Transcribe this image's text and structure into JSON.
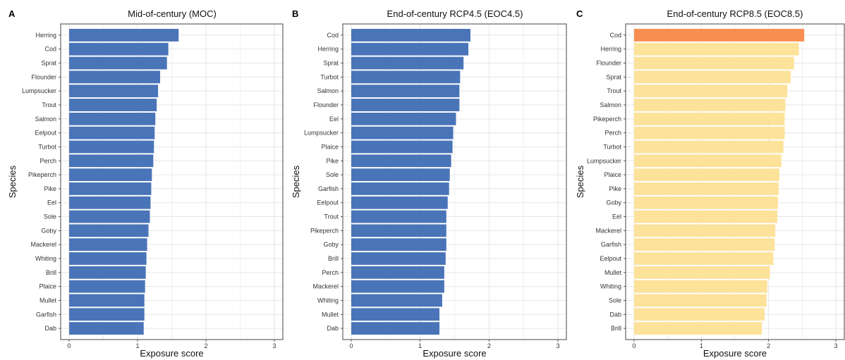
{
  "colors": {
    "blue": "#4a74b8",
    "yellow": "#fde29a",
    "orange": "#f98e52",
    "grid": "#e6e6e6",
    "frame": "#444444"
  },
  "chart_data": [
    {
      "type": "bar",
      "orientation": "horizontal",
      "letter": "A",
      "title": "Mid-of-century (MOC)",
      "xlabel": "Exposure score",
      "ylabel": "Species",
      "xlim": [
        0,
        3
      ],
      "xticks": [
        "0",
        "1",
        "2",
        "3"
      ],
      "categories": [
        "Herring",
        "Cod",
        "Sprat",
        "Flounder",
        "Lumpsucker",
        "Trout",
        "Salmon",
        "Eelpout",
        "Turbot",
        "Perch",
        "Pikeperch",
        "Pike",
        "Eel",
        "Sole",
        "Goby",
        "Mackerel",
        "Whiting",
        "Brill",
        "Plaice",
        "Mullet",
        "Garfish",
        "Dab"
      ],
      "values": [
        1.6,
        1.45,
        1.43,
        1.33,
        1.3,
        1.28,
        1.26,
        1.25,
        1.24,
        1.23,
        1.21,
        1.2,
        1.19,
        1.18,
        1.16,
        1.14,
        1.13,
        1.12,
        1.11,
        1.1,
        1.1,
        1.09
      ],
      "bar_colors": [
        "#4a74b8"
      ]
    },
    {
      "type": "bar",
      "orientation": "horizontal",
      "letter": "B",
      "title": "End-of-century RCP4.5 (EOC4.5)",
      "xlabel": "Exposure score",
      "ylabel": "Species",
      "xlim": [
        0,
        3
      ],
      "xticks": [
        "0",
        "1",
        "2",
        "3"
      ],
      "categories": [
        "Cod",
        "Herring",
        "Sprat",
        "Turbot",
        "Salmon",
        "Flounder",
        "Eel",
        "Lumpsucker",
        "Plaice",
        "Pike",
        "Sole",
        "Garfish",
        "Eelpout",
        "Trout",
        "Pikeperch",
        "Goby",
        "Brill",
        "Perch",
        "Mackerel",
        "Whiting",
        "Mullet",
        "Dab"
      ],
      "values": [
        1.73,
        1.7,
        1.63,
        1.58,
        1.57,
        1.57,
        1.52,
        1.48,
        1.47,
        1.45,
        1.43,
        1.42,
        1.4,
        1.38,
        1.38,
        1.38,
        1.37,
        1.35,
        1.35,
        1.32,
        1.28,
        1.28
      ],
      "bar_colors": [
        "#4a74b8"
      ]
    },
    {
      "type": "bar",
      "orientation": "horizontal",
      "letter": "C",
      "title": "End-of-century RCP8.5 (EOC8.5)",
      "xlabel": "Exposure score",
      "ylabel": "Species",
      "xlim": [
        0,
        3
      ],
      "xticks": [
        "0",
        "1",
        "2",
        "3"
      ],
      "categories": [
        "Cod",
        "Herring",
        "Flounder",
        "Sprat",
        "Trout",
        "Salmon",
        "Pikeperch",
        "Perch",
        "Turbot",
        "Lumpsucker",
        "Plaice",
        "Pike",
        "Goby",
        "Eel",
        "Mackerel",
        "Garfish",
        "Eelpout",
        "Mullet",
        "Whiting",
        "Sole",
        "Dab",
        "Brill"
      ],
      "values": [
        2.53,
        2.45,
        2.38,
        2.33,
        2.28,
        2.25,
        2.24,
        2.24,
        2.22,
        2.19,
        2.16,
        2.15,
        2.14,
        2.13,
        2.1,
        2.09,
        2.07,
        2.02,
        1.98,
        1.97,
        1.94,
        1.9
      ],
      "bar_colors": [
        "#f98e52",
        "#fde29a"
      ]
    }
  ]
}
